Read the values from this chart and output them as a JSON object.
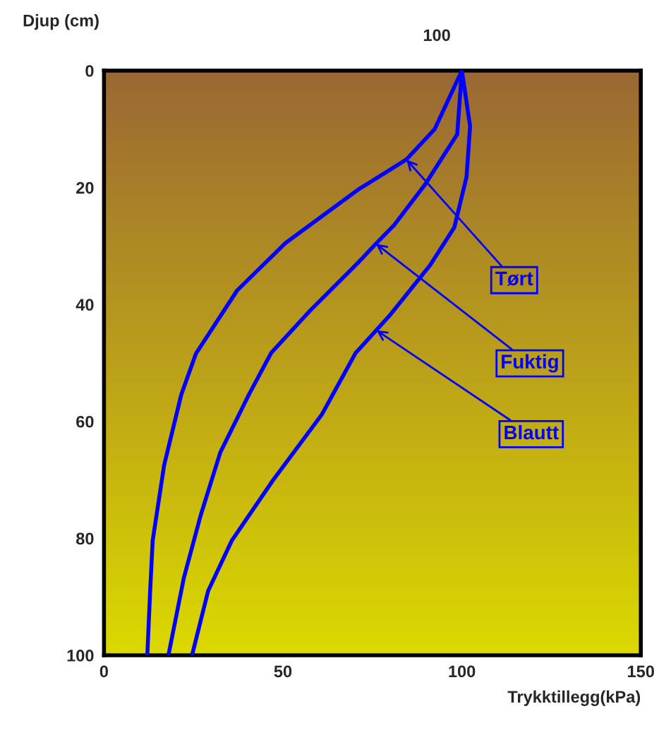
{
  "chart_data": {
    "type": "line",
    "xlabel": "Trykktillegg(kPa)",
    "ylabel": "Djup (cm)",
    "xlim": [
      0,
      150
    ],
    "xticks": [
      0,
      50,
      100,
      150
    ],
    "ylim": [
      100,
      0
    ],
    "yticks": [
      0,
      20,
      40,
      60,
      80,
      100
    ],
    "grid": false,
    "legend": false,
    "marker": "none",
    "line_style": "solid",
    "series": [
      {
        "color": "#0000ff",
        "x": [
          100,
          92.4,
          84.5,
          70.9,
          50.7,
          37.2,
          25.7,
          21.6,
          16.8,
          13.6,
          12.9,
          12.1
        ],
        "values": [
          0,
          10,
          15.2,
          20.4,
          29.5,
          37.6,
          48.4,
          55.4,
          67.5,
          80.4,
          89,
          100
        ]
      },
      {
        "color": "#0000ff",
        "x": [
          100,
          98.7,
          89.8,
          81.1,
          76,
          70.9,
          57.5,
          46.7,
          40.5,
          32.5,
          27,
          22.3,
          18
        ],
        "values": [
          0,
          10.9,
          19.4,
          26.4,
          29.6,
          32.9,
          41.1,
          48.3,
          55.4,
          65.3,
          76.1,
          86.8,
          100
        ]
      },
      {
        "color": "#0000ff",
        "x": [
          100,
          102.3,
          101.3,
          97.9,
          91.1,
          79.8,
          76.1,
          70.3,
          60.9,
          47.3,
          35.7,
          29.1,
          24.6
        ],
        "values": [
          0,
          9.5,
          18.2,
          26.8,
          33.3,
          41.9,
          44.4,
          48.3,
          58.8,
          70,
          80.4,
          89,
          100
        ]
      }
    ],
    "annotations": [
      "100",
      {
        "text": "Tørt",
        "x": 84.5,
        "y": 15.2
      },
      {
        "text": "Fuktig",
        "x": 76,
        "y": 29.6
      },
      {
        "text": "Blautt",
        "x": 76.1,
        "y": 44.4
      }
    ]
  }
}
